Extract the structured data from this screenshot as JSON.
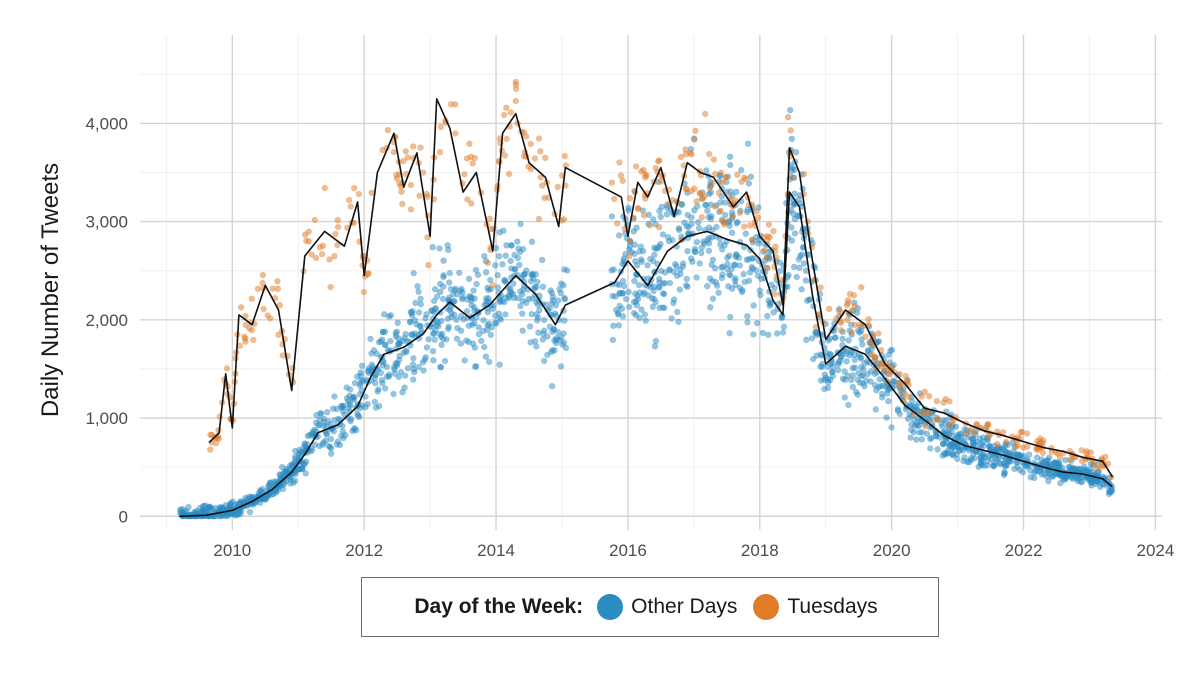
{
  "chart_data": {
    "type": "scatter",
    "title": "",
    "xlabel": "",
    "ylabel": "Daily Number of Tweets",
    "xlim": [
      2008.6,
      2024.1
    ],
    "ylim": [
      -140,
      4900
    ],
    "x_ticks": [
      "2010",
      "2012",
      "2014",
      "2016",
      "2018",
      "2020",
      "2022",
      "2024"
    ],
    "y_ticks": [
      "0",
      "1,000",
      "2,000",
      "3,000",
      "4,000"
    ],
    "grid": true,
    "legend": {
      "title": "Day of the Week:",
      "position": "bottom",
      "entries": [
        "Other Days",
        "Tuesdays"
      ]
    },
    "series": [
      {
        "name": "Other Days",
        "color": "#2b8cc4",
        "trend": [
          [
            2009.2,
            0
          ],
          [
            2009.6,
            10
          ],
          [
            2010.0,
            60
          ],
          [
            2010.3,
            150
          ],
          [
            2010.6,
            270
          ],
          [
            2010.9,
            450
          ],
          [
            2011.1,
            630
          ],
          [
            2011.3,
            850
          ],
          [
            2011.6,
            930
          ],
          [
            2011.9,
            1120
          ],
          [
            2012.1,
            1420
          ],
          [
            2012.3,
            1650
          ],
          [
            2012.6,
            1720
          ],
          [
            2012.9,
            1860
          ],
          [
            2013.1,
            2050
          ],
          [
            2013.3,
            2180
          ],
          [
            2013.6,
            2020
          ],
          [
            2013.9,
            2150
          ],
          [
            2014.1,
            2300
          ],
          [
            2014.3,
            2450
          ],
          [
            2014.6,
            2260
          ],
          [
            2014.9,
            1950
          ],
          [
            2015.05,
            2150
          ],
          [
            2015.8,
            2380
          ],
          [
            2016.0,
            2600
          ],
          [
            2016.3,
            2350
          ],
          [
            2016.6,
            2700
          ],
          [
            2016.9,
            2850
          ],
          [
            2017.2,
            2900
          ],
          [
            2017.5,
            2820
          ],
          [
            2017.8,
            2760
          ],
          [
            2018.0,
            2620
          ],
          [
            2018.2,
            2200
          ],
          [
            2018.35,
            2050
          ],
          [
            2018.45,
            3300
          ],
          [
            2018.6,
            3150
          ],
          [
            2018.8,
            2250
          ],
          [
            2019.0,
            1550
          ],
          [
            2019.3,
            1730
          ],
          [
            2019.6,
            1650
          ],
          [
            2019.9,
            1400
          ],
          [
            2020.2,
            1130
          ],
          [
            2020.5,
            980
          ],
          [
            2020.8,
            820
          ],
          [
            2021.1,
            720
          ],
          [
            2021.4,
            670
          ],
          [
            2021.7,
            620
          ],
          [
            2022.0,
            560
          ],
          [
            2022.3,
            500
          ],
          [
            2022.6,
            450
          ],
          [
            2022.9,
            430
          ],
          [
            2023.2,
            380
          ],
          [
            2023.35,
            300
          ]
        ]
      },
      {
        "name": "Tuesdays",
        "color": "#e07b28",
        "trend": [
          [
            2009.65,
            750
          ],
          [
            2009.8,
            850
          ],
          [
            2009.9,
            1450
          ],
          [
            2010.0,
            900
          ],
          [
            2010.1,
            2050
          ],
          [
            2010.3,
            1950
          ],
          [
            2010.5,
            2350
          ],
          [
            2010.7,
            2100
          ],
          [
            2010.9,
            1280
          ],
          [
            2011.1,
            2650
          ],
          [
            2011.4,
            2900
          ],
          [
            2011.7,
            2750
          ],
          [
            2011.9,
            3200
          ],
          [
            2012.0,
            2450
          ],
          [
            2012.2,
            3500
          ],
          [
            2012.45,
            3900
          ],
          [
            2012.6,
            3350
          ],
          [
            2012.8,
            3700
          ],
          [
            2013.0,
            2850
          ],
          [
            2013.1,
            4250
          ],
          [
            2013.3,
            3950
          ],
          [
            2013.5,
            3300
          ],
          [
            2013.7,
            3500
          ],
          [
            2013.95,
            2700
          ],
          [
            2014.1,
            3900
          ],
          [
            2014.3,
            4100
          ],
          [
            2014.5,
            3600
          ],
          [
            2014.75,
            3450
          ],
          [
            2014.95,
            2950
          ],
          [
            2015.05,
            3550
          ],
          [
            2015.9,
            3250
          ],
          [
            2016.0,
            2850
          ],
          [
            2016.15,
            3400
          ],
          [
            2016.3,
            3250
          ],
          [
            2016.5,
            3550
          ],
          [
            2016.7,
            3050
          ],
          [
            2016.9,
            3600
          ],
          [
            2017.1,
            3500
          ],
          [
            2017.3,
            3450
          ],
          [
            2017.6,
            3150
          ],
          [
            2017.8,
            3300
          ],
          [
            2018.0,
            2850
          ],
          [
            2018.2,
            2700
          ],
          [
            2018.35,
            2150
          ],
          [
            2018.45,
            3750
          ],
          [
            2018.6,
            3500
          ],
          [
            2018.8,
            2600
          ],
          [
            2019.0,
            1800
          ],
          [
            2019.3,
            2100
          ],
          [
            2019.6,
            1950
          ],
          [
            2019.9,
            1550
          ],
          [
            2020.2,
            1350
          ],
          [
            2020.5,
            1100
          ],
          [
            2020.8,
            1050
          ],
          [
            2021.1,
            950
          ],
          [
            2021.4,
            870
          ],
          [
            2021.7,
            820
          ],
          [
            2022.0,
            760
          ],
          [
            2022.3,
            700
          ],
          [
            2022.6,
            660
          ],
          [
            2022.9,
            600
          ],
          [
            2023.2,
            560
          ],
          [
            2023.35,
            400
          ]
        ]
      }
    ]
  }
}
